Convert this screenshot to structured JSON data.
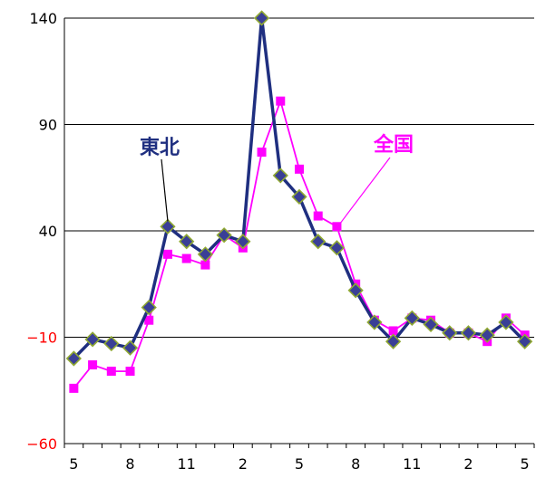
{
  "chart_data": {
    "type": "line",
    "title": "",
    "xlabel": "",
    "ylabel": "",
    "ylim": [
      -60,
      140
    ],
    "y_ticks": [
      140,
      90,
      40,
      -10,
      -60
    ],
    "x_tick_labels": [
      "5",
      "8",
      "11",
      "2",
      "5",
      "8",
      "11",
      "2",
      "5"
    ],
    "x": [
      "5",
      "6",
      "7",
      "8",
      "9",
      "10",
      "11",
      "12",
      "1",
      "2",
      "3",
      "4",
      "5",
      "6",
      "7",
      "8",
      "9",
      "10",
      "11",
      "12",
      "1",
      "2",
      "3",
      "4",
      "5"
    ],
    "grid": true,
    "series": [
      {
        "name": "東北",
        "color": "#1f2f80",
        "marker": "diamond",
        "values": [
          -20,
          -11,
          -13,
          -15,
          4,
          42,
          35,
          29,
          38,
          35,
          140,
          66,
          56,
          35,
          32,
          12,
          -3,
          -12,
          -1,
          -4,
          -8,
          -8,
          -9,
          -3,
          -12
        ]
      },
      {
        "name": "全国",
        "color": "#ff00ff",
        "marker": "square",
        "values": [
          -34,
          -23,
          -26,
          -26,
          -2,
          29,
          27,
          24,
          38,
          32,
          77,
          101,
          69,
          47,
          42,
          15,
          -2,
          -7,
          -1,
          -2,
          -8,
          -8,
          -12,
          -1,
          -9
        ]
      }
    ]
  }
}
